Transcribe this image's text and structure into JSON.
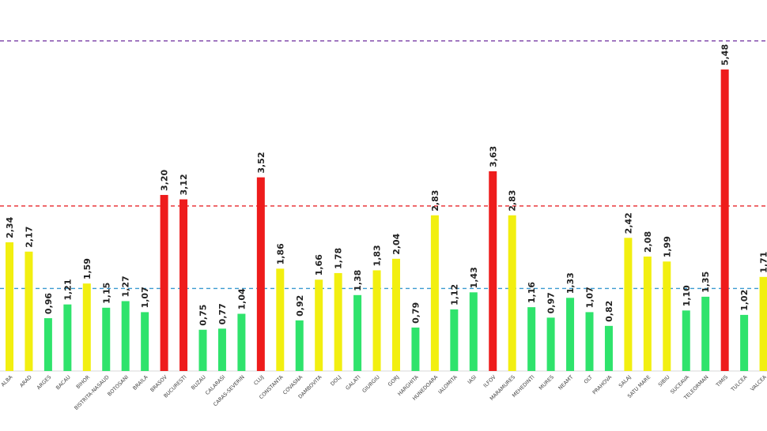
{
  "chart_data": {
    "type": "bar",
    "categories": [
      "ALBA",
      "ARAD",
      "ARGES",
      "BACAU",
      "BIHOR",
      "BISTRITA-NASAUD",
      "BOTOSANI",
      "BRAILA",
      "BRASOV",
      "BUCURESTI",
      "BUZAU",
      "CALARASI",
      "CARAS-SEVERIN",
      "CLUJ",
      "CONSTANTA",
      "COVASNA",
      "DAMBOVITA",
      "DOLJ",
      "GALATI",
      "GIURGIU",
      "GORJ",
      "HARGHITA",
      "HUNEDOARA",
      "IALOMITA",
      "IASI",
      "ILFOV",
      "MARAMURES",
      "MEHEDINTI",
      "MURES",
      "NEAMT",
      "OLT",
      "PRAHOVA",
      "SALAJ",
      "SATU MARE",
      "SIBIU",
      "SUCEAVA",
      "TELEORMAN",
      "TIMIS",
      "TULCEA",
      "VALCEA"
    ],
    "values": [
      2.34,
      2.17,
      0.96,
      1.21,
      1.59,
      1.15,
      1.27,
      1.07,
      3.2,
      3.12,
      0.75,
      0.77,
      1.04,
      3.52,
      1.86,
      0.92,
      1.66,
      1.78,
      1.38,
      1.83,
      2.04,
      0.79,
      2.83,
      1.12,
      1.43,
      3.63,
      2.83,
      1.16,
      0.97,
      1.33,
      1.07,
      0.82,
      2.42,
      2.08,
      1.99,
      1.1,
      1.35,
      5.48,
      1.02,
      1.71
    ],
    "value_labels": [
      "2,34",
      "2,17",
      "0,96",
      "1,21",
      "1,59",
      "1,15",
      "1,27",
      "1,07",
      "3,20",
      "3,12",
      "0,75",
      "0,77",
      "1,04",
      "3,52",
      "1,86",
      "0,92",
      "1,66",
      "1,78",
      "1,38",
      "1,83",
      "2,04",
      "0,79",
      "2,83",
      "1,12",
      "1,43",
      "3,63",
      "2,83",
      "1,16",
      "0,97",
      "1,33",
      "1,07",
      "0,82",
      "2,42",
      "2,08",
      "1,99",
      "1,10",
      "1,35",
      "5,48",
      "1,02",
      "1,71"
    ],
    "bar_colors": [
      "yellow",
      "yellow",
      "green",
      "green",
      "yellow",
      "green",
      "green",
      "green",
      "red",
      "red",
      "green",
      "green",
      "green",
      "red",
      "yellow",
      "green",
      "yellow",
      "yellow",
      "green",
      "yellow",
      "yellow",
      "green",
      "yellow",
      "green",
      "green",
      "red",
      "yellow",
      "green",
      "green",
      "green",
      "green",
      "green",
      "yellow",
      "yellow",
      "yellow",
      "green",
      "green",
      "red",
      "green",
      "yellow"
    ],
    "palette": {
      "green": "#2fe36c",
      "yellow": "#f2ef10",
      "red": "#ee1c1c"
    },
    "reference_lines": [
      {
        "value": 1.5,
        "color": "#3a9ad0"
      },
      {
        "value": 3.0,
        "color": "#e8262a"
      },
      {
        "value": 6.0,
        "color": "#7a3fa6"
      }
    ],
    "ylim": [
      0,
      6.3
    ],
    "grid": false,
    "legend": "none"
  }
}
